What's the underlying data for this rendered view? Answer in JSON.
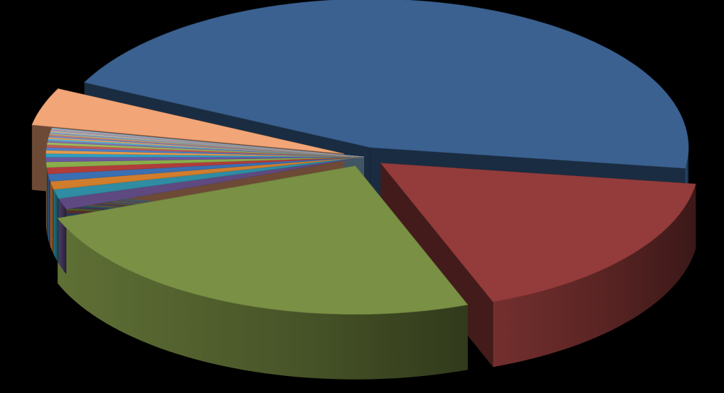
{
  "chart_data": {
    "type": "pie",
    "style": "3d-exploded",
    "title": "",
    "legend": "none",
    "data_labels": "none",
    "series": [
      {
        "values": [
          45.0,
          17.0,
          25.0,
          1.2,
          1.0,
          0.9,
          0.8,
          0.7,
          0.6,
          0.5,
          0.4,
          0.35,
          0.3,
          0.3,
          0.25,
          0.2,
          0.2,
          0.15,
          0.15,
          0.15,
          0.1,
          0.1,
          0.1,
          0.1,
          0.1,
          0.1,
          0.1,
          4.1
        ],
        "colors": [
          "#3a6190",
          "#943c3b",
          "#7a9044",
          "#5e4a80",
          "#2f8ca3",
          "#d07d2c",
          "#3a6fb2",
          "#b13d3a",
          "#8aad4c",
          "#6b57a0",
          "#2f9ec0",
          "#e49a4a",
          "#4d7fc4",
          "#c15a57",
          "#9bbd5c",
          "#8470b0",
          "#5cb2cc",
          "#f0a860",
          "#6a93cf",
          "#cc7a78",
          "#b2cc80",
          "#9c8cc4",
          "#80c4d8",
          "#f4bc86",
          "#8aa8d8",
          "#d89a98",
          "#8fc0dc",
          "#f2a577"
        ],
        "explode": [
          1,
          1,
          1,
          0,
          0,
          0,
          0,
          0,
          0,
          0,
          0,
          0,
          0,
          0,
          0,
          0,
          0,
          0,
          0,
          0,
          0,
          0,
          0,
          0,
          0,
          0,
          0,
          1
        ]
      }
    ]
  }
}
